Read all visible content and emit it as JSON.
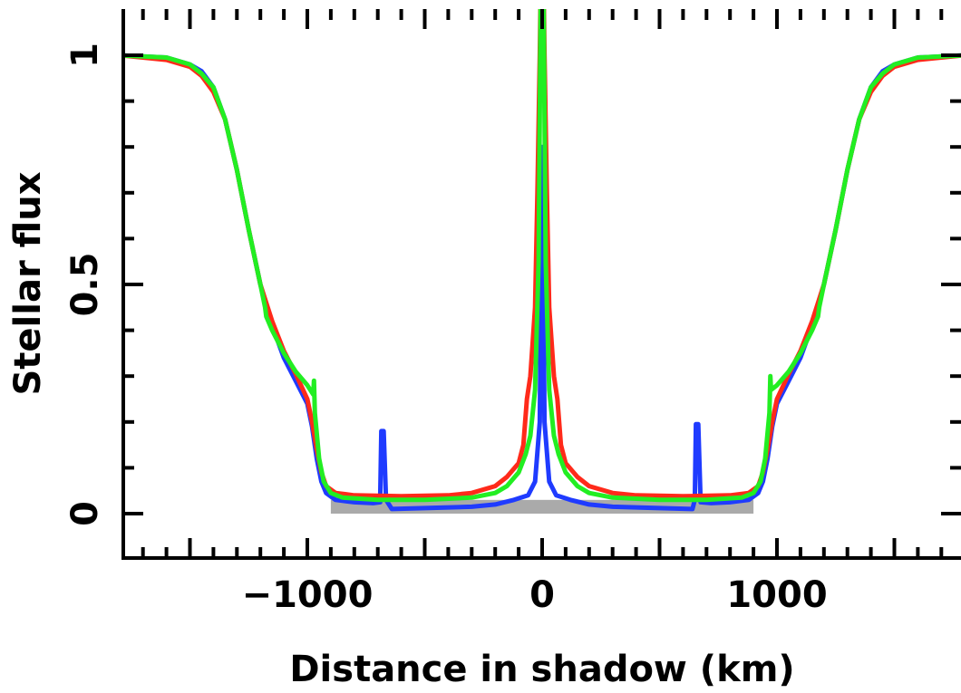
{
  "chart_data": {
    "type": "line",
    "title": "",
    "xlabel": "Distance in shadow (km)",
    "ylabel": "Stellar flux",
    "xlim": [
      -1800,
      1800
    ],
    "ylim": [
      -0.09,
      1.1
    ],
    "grid": false,
    "legend": "none",
    "x_ticks": [
      {
        "value": -1000,
        "label": "−1000"
      },
      {
        "value": 0,
        "label": "0"
      },
      {
        "value": 1000,
        "label": "1000"
      }
    ],
    "y_ticks": [
      {
        "value": 0,
        "label": "0"
      },
      {
        "value": 0.5,
        "label": "0.5"
      },
      {
        "value": 1,
        "label": "1"
      }
    ],
    "shaded_band": {
      "x": [
        -900,
        900
      ],
      "y": [
        0,
        0.03
      ],
      "color": "#aaaaaa"
    },
    "series": [
      {
        "color": "#1f3bff",
        "points": [
          [
            -1800,
            1.0
          ],
          [
            -1600,
            0.995
          ],
          [
            -1500,
            0.98
          ],
          [
            -1450,
            0.965
          ],
          [
            -1400,
            0.93
          ],
          [
            -1350,
            0.86
          ],
          [
            -1300,
            0.75
          ],
          [
            -1250,
            0.62
          ],
          [
            -1200,
            0.5
          ],
          [
            -1150,
            0.41
          ],
          [
            -1100,
            0.34
          ],
          [
            -1050,
            0.29
          ],
          [
            -1000,
            0.24
          ],
          [
            -980,
            0.19
          ],
          [
            -960,
            0.12
          ],
          [
            -940,
            0.07
          ],
          [
            -920,
            0.045
          ],
          [
            -880,
            0.03
          ],
          [
            -800,
            0.025
          ],
          [
            -720,
            0.023
          ],
          [
            -690,
            0.025
          ],
          [
            -685,
            0.18
          ],
          [
            -675,
            0.18
          ],
          [
            -665,
            0.03
          ],
          [
            -640,
            0.01
          ],
          [
            -500,
            0.012
          ],
          [
            -300,
            0.015
          ],
          [
            -200,
            0.02
          ],
          [
            -120,
            0.03
          ],
          [
            -60,
            0.04
          ],
          [
            -30,
            0.07
          ],
          [
            -10,
            0.2
          ],
          [
            0,
            0.8
          ],
          [
            10,
            0.2
          ],
          [
            30,
            0.07
          ],
          [
            60,
            0.04
          ],
          [
            120,
            0.03
          ],
          [
            200,
            0.02
          ],
          [
            300,
            0.015
          ],
          [
            500,
            0.012
          ],
          [
            640,
            0.01
          ],
          [
            650,
            0.03
          ],
          [
            655,
            0.195
          ],
          [
            665,
            0.195
          ],
          [
            675,
            0.025
          ],
          [
            720,
            0.023
          ],
          [
            800,
            0.025
          ],
          [
            880,
            0.03
          ],
          [
            920,
            0.045
          ],
          [
            940,
            0.07
          ],
          [
            960,
            0.12
          ],
          [
            980,
            0.19
          ],
          [
            1000,
            0.24
          ],
          [
            1050,
            0.29
          ],
          [
            1100,
            0.34
          ],
          [
            1150,
            0.41
          ],
          [
            1200,
            0.5
          ],
          [
            1250,
            0.62
          ],
          [
            1300,
            0.75
          ],
          [
            1350,
            0.86
          ],
          [
            1400,
            0.93
          ],
          [
            1450,
            0.965
          ],
          [
            1500,
            0.98
          ],
          [
            1600,
            0.995
          ],
          [
            1800,
            1.0
          ]
        ]
      },
      {
        "color": "#ff2a1a",
        "points": [
          [
            -1800,
            1.0
          ],
          [
            -1600,
            0.99
          ],
          [
            -1500,
            0.975
          ],
          [
            -1450,
            0.955
          ],
          [
            -1400,
            0.92
          ],
          [
            -1350,
            0.86
          ],
          [
            -1300,
            0.75
          ],
          [
            -1250,
            0.62
          ],
          [
            -1200,
            0.5
          ],
          [
            -1150,
            0.42
          ],
          [
            -1100,
            0.355
          ],
          [
            -1050,
            0.305
          ],
          [
            -1000,
            0.25
          ],
          [
            -980,
            0.2
          ],
          [
            -960,
            0.14
          ],
          [
            -940,
            0.09
          ],
          [
            -920,
            0.06
          ],
          [
            -880,
            0.045
          ],
          [
            -800,
            0.04
          ],
          [
            -600,
            0.038
          ],
          [
            -400,
            0.04
          ],
          [
            -300,
            0.045
          ],
          [
            -200,
            0.06
          ],
          [
            -150,
            0.08
          ],
          [
            -100,
            0.11
          ],
          [
            -80,
            0.15
          ],
          [
            -65,
            0.25
          ],
          [
            -50,
            0.3
          ],
          [
            -30,
            0.45
          ],
          [
            -20,
            0.7
          ],
          [
            -10,
            1.0
          ],
          [
            -5,
            1.2
          ],
          [
            5,
            1.2
          ],
          [
            10,
            1.0
          ],
          [
            20,
            0.7
          ],
          [
            30,
            0.45
          ],
          [
            50,
            0.3
          ],
          [
            65,
            0.25
          ],
          [
            80,
            0.15
          ],
          [
            100,
            0.11
          ],
          [
            150,
            0.08
          ],
          [
            200,
            0.06
          ],
          [
            300,
            0.045
          ],
          [
            400,
            0.04
          ],
          [
            600,
            0.038
          ],
          [
            800,
            0.04
          ],
          [
            880,
            0.045
          ],
          [
            920,
            0.06
          ],
          [
            940,
            0.09
          ],
          [
            960,
            0.14
          ],
          [
            980,
            0.2
          ],
          [
            1000,
            0.25
          ],
          [
            1050,
            0.305
          ],
          [
            1100,
            0.355
          ],
          [
            1150,
            0.42
          ],
          [
            1200,
            0.5
          ],
          [
            1250,
            0.62
          ],
          [
            1300,
            0.75
          ],
          [
            1350,
            0.86
          ],
          [
            1400,
            0.92
          ],
          [
            1450,
            0.955
          ],
          [
            1500,
            0.975
          ],
          [
            1600,
            0.99
          ],
          [
            1800,
            1.0
          ]
        ]
      },
      {
        "color": "#22ee22",
        "points": [
          [
            -1800,
            1.0
          ],
          [
            -1600,
            0.995
          ],
          [
            -1500,
            0.98
          ],
          [
            -1450,
            0.96
          ],
          [
            -1400,
            0.93
          ],
          [
            -1350,
            0.86
          ],
          [
            -1300,
            0.75
          ],
          [
            -1250,
            0.62
          ],
          [
            -1200,
            0.5
          ],
          [
            -1180,
            0.45
          ],
          [
            -1175,
            0.43
          ],
          [
            -1150,
            0.4
          ],
          [
            -1100,
            0.35
          ],
          [
            -1050,
            0.31
          ],
          [
            -1000,
            0.28
          ],
          [
            -975,
            0.26
          ],
          [
            -972,
            0.29
          ],
          [
            -968,
            0.22
          ],
          [
            -950,
            0.12
          ],
          [
            -930,
            0.07
          ],
          [
            -900,
            0.045
          ],
          [
            -850,
            0.035
          ],
          [
            -700,
            0.03
          ],
          [
            -500,
            0.03
          ],
          [
            -300,
            0.035
          ],
          [
            -200,
            0.045
          ],
          [
            -150,
            0.06
          ],
          [
            -100,
            0.09
          ],
          [
            -70,
            0.13
          ],
          [
            -50,
            0.17
          ],
          [
            -30,
            0.27
          ],
          [
            -15,
            0.55
          ],
          [
            -5,
            1.2
          ],
          [
            5,
            1.2
          ],
          [
            15,
            0.55
          ],
          [
            30,
            0.27
          ],
          [
            50,
            0.17
          ],
          [
            70,
            0.13
          ],
          [
            100,
            0.09
          ],
          [
            150,
            0.06
          ],
          [
            200,
            0.045
          ],
          [
            300,
            0.035
          ],
          [
            500,
            0.03
          ],
          [
            700,
            0.03
          ],
          [
            850,
            0.035
          ],
          [
            900,
            0.045
          ],
          [
            930,
            0.07
          ],
          [
            950,
            0.12
          ],
          [
            968,
            0.22
          ],
          [
            972,
            0.3
          ],
          [
            975,
            0.27
          ],
          [
            1000,
            0.28
          ],
          [
            1050,
            0.31
          ],
          [
            1100,
            0.35
          ],
          [
            1150,
            0.4
          ],
          [
            1175,
            0.43
          ],
          [
            1180,
            0.45
          ],
          [
            1200,
            0.5
          ],
          [
            1250,
            0.62
          ],
          [
            1300,
            0.75
          ],
          [
            1350,
            0.86
          ],
          [
            1400,
            0.93
          ],
          [
            1450,
            0.96
          ],
          [
            1500,
            0.98
          ],
          [
            1600,
            0.995
          ],
          [
            1800,
            1.0
          ]
        ]
      }
    ]
  }
}
